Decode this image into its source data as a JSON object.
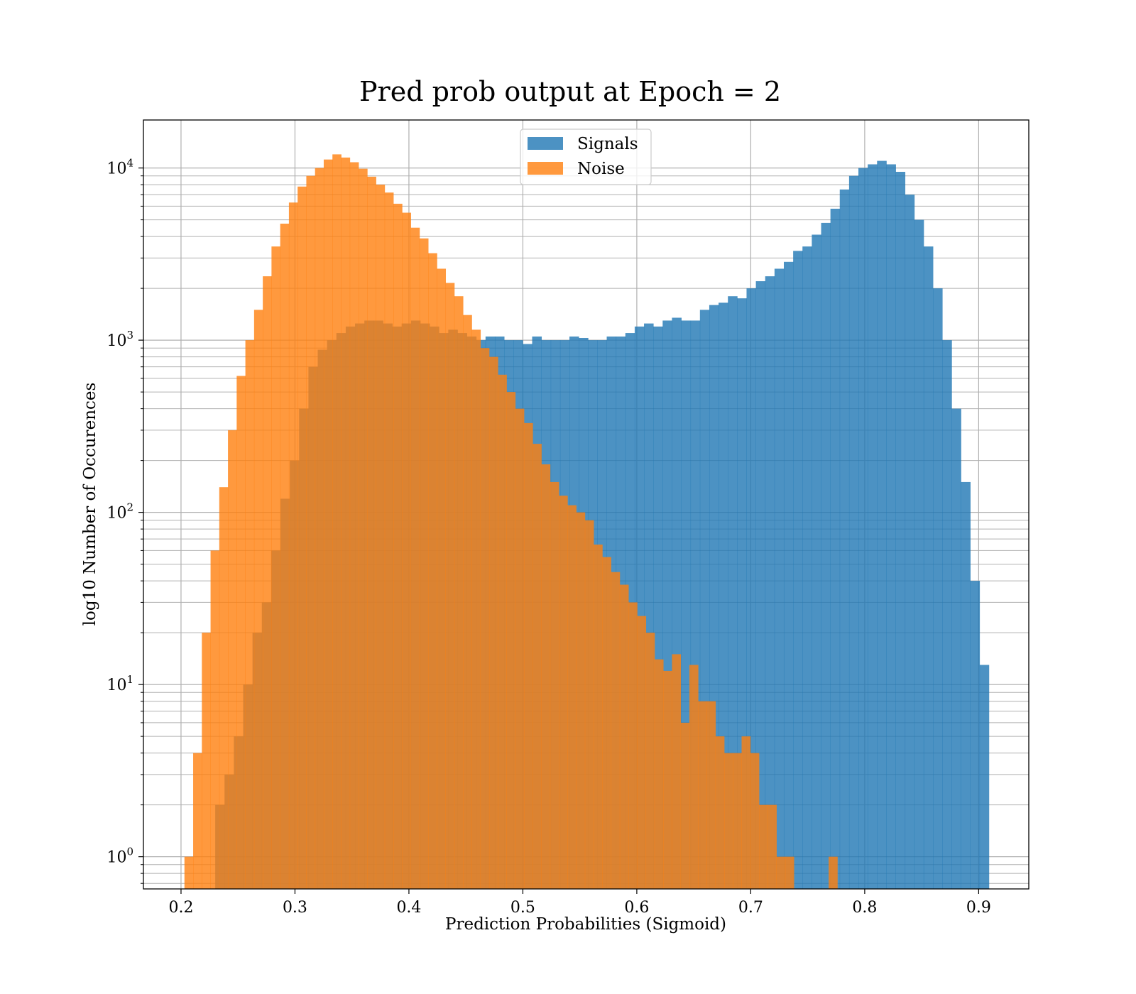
{
  "chart_data": {
    "type": "bar",
    "subtype": "histogram",
    "title": "Pred prob output at Epoch = 2",
    "xlabel": "Prediction Probabilities (Sigmoid)",
    "ylabel": "log10 Number of Occurences",
    "xlim": [
      0.167,
      0.944
    ],
    "ylim": [
      0.65,
      19000
    ],
    "yscale": "log",
    "grid": true,
    "legend_position": "top-center",
    "x_ticks": [
      0.2,
      0.3,
      0.4,
      0.5,
      0.6,
      0.7,
      0.8,
      0.9
    ],
    "x_tick_labels": [
      "0.2",
      "0.3",
      "0.4",
      "0.5",
      "0.6",
      "0.7",
      "0.8",
      "0.9"
    ],
    "y_ticks": [
      1,
      10,
      100,
      1000,
      10000
    ],
    "y_tick_labels": [
      {
        "base": "10",
        "exp": "0"
      },
      {
        "base": "10",
        "exp": "1"
      },
      {
        "base": "10",
        "exp": "2"
      },
      {
        "base": "10",
        "exp": "3"
      },
      {
        "base": "10",
        "exp": "4"
      }
    ],
    "series": [
      {
        "name": "Signals",
        "color": "#1f77b4",
        "alpha": 0.8,
        "x_start": 0.23,
        "x_end": 0.909,
        "values": [
          2,
          3,
          5,
          10,
          20,
          30,
          60,
          120,
          200,
          400,
          700,
          880,
          1000,
          1100,
          1200,
          1250,
          1300,
          1300,
          1250,
          1200,
          1250,
          1300,
          1250,
          1200,
          1100,
          1150,
          1100,
          1050,
          1000,
          1050,
          1050,
          1000,
          1000,
          950,
          1050,
          1000,
          1000,
          1000,
          1050,
          1030,
          1000,
          1000,
          1050,
          1050,
          1100,
          1200,
          1250,
          1200,
          1300,
          1350,
          1300,
          1300,
          1500,
          1600,
          1650,
          1800,
          1750,
          2000,
          2200,
          2350,
          2600,
          2850,
          3300,
          3500,
          4100,
          4800,
          5800,
          7500,
          9000,
          10000,
          10500,
          11000,
          10500,
          9500,
          7000,
          5000,
          3500,
          2000,
          1000,
          400,
          150,
          40,
          13
        ]
      },
      {
        "name": "Noise",
        "color": "#ff7f0e",
        "alpha": 0.8,
        "x_start": 0.203,
        "x_end": 0.776,
        "values": [
          1,
          4,
          20,
          60,
          140,
          300,
          620,
          1000,
          1500,
          2350,
          3500,
          4750,
          6300,
          7800,
          9000,
          10000,
          11200,
          12000,
          11500,
          10800,
          9900,
          8900,
          8000,
          7200,
          6200,
          5500,
          4500,
          3900,
          3200,
          2600,
          2150,
          1800,
          1400,
          1150,
          900,
          800,
          630,
          500,
          400,
          330,
          250,
          190,
          150,
          125,
          110,
          100,
          90,
          65,
          55,
          45,
          38,
          30,
          25,
          20,
          14,
          12,
          15,
          6,
          13,
          8,
          8,
          5,
          4,
          4,
          5,
          4,
          2,
          2,
          1,
          1,
          0,
          0,
          0,
          0,
          1
        ]
      }
    ]
  }
}
